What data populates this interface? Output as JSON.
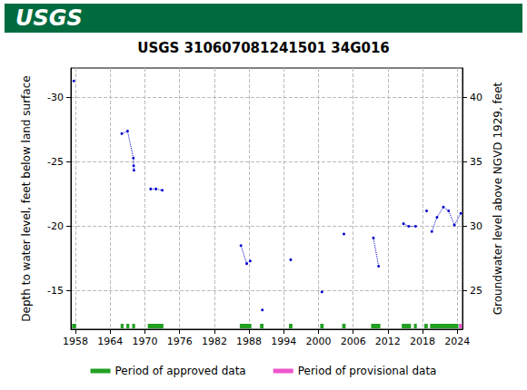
{
  "header": {
    "text": "USGS"
  },
  "chart_data": {
    "type": "line",
    "title": "USGS 310607081241501 34G016",
    "y_label": "Depth to water level, feet below land surface",
    "y2_label": "Groundwater level above NGVD 1929, feet",
    "x": [
      1957.7,
      null,
      1966.0,
      1967.0,
      1968.0,
      1968.05,
      1968.1,
      null,
      1971.0,
      1971.9,
      1973.0,
      null,
      1986.6,
      1987.6,
      1988.2,
      null,
      1990.3,
      null,
      1995.2,
      null,
      2000.6,
      null,
      2004.4,
      null,
      2009.5,
      2010.4,
      null,
      2014.7,
      2015.6,
      2016.8,
      null,
      2018.7,
      null,
      2019.6,
      2020.5,
      2021.6,
      2022.5,
      2023.5,
      2024.6
    ],
    "series": [
      {
        "color": "#0000cc",
        "marker": "circle",
        "line_style": "dotted",
        "values": [
          -31.3,
          null,
          -27.2,
          -27.4,
          -25.3,
          -24.7,
          -24.35,
          null,
          -22.9,
          -22.9,
          -22.8,
          null,
          -18.5,
          -17.1,
          -17.3,
          null,
          -13.5,
          null,
          -17.4,
          null,
          -14.9,
          null,
          -19.4,
          null,
          -19.1,
          -16.9,
          null,
          -20.2,
          -20.0,
          -20.0,
          null,
          -21.2,
          null,
          -19.6,
          -20.7,
          -21.5,
          -21.2,
          -20.1,
          -21.0
        ]
      }
    ],
    "periods": [
      {
        "name": "Period of approved data",
        "color": "#22a022",
        "ranges": [
          [
            1957.4,
            1958.1
          ],
          [
            1965.8,
            1966.3
          ],
          [
            1966.8,
            1967.3
          ],
          [
            1967.8,
            1968.3
          ],
          [
            1970.5,
            1973.2
          ],
          [
            1986.4,
            1988.4
          ],
          [
            1989.9,
            1990.5
          ],
          [
            1994.9,
            1995.5
          ],
          [
            2000.3,
            2000.9
          ],
          [
            2004.1,
            2004.7
          ],
          [
            2009.1,
            2010.7
          ],
          [
            2014.4,
            2016.0
          ],
          [
            2016.5,
            2017.0
          ],
          [
            2018.3,
            2018.9
          ],
          [
            2019.3,
            2024.2
          ]
        ]
      },
      {
        "name": "Period of provisional data",
        "color": "#ee55cc",
        "ranges": [
          [
            2024.3,
            2024.8
          ]
        ]
      }
    ],
    "xlim": [
      1957.2,
      2024.9
    ],
    "xticks": [
      1958,
      1964,
      1970,
      1976,
      1982,
      1988,
      1994,
      2000,
      2006,
      2012,
      2018,
      2024
    ],
    "ylim": [
      -12,
      -32.3
    ],
    "yticks": [
      -30,
      -25,
      -20,
      -15
    ],
    "y2lim": [
      22,
      42.3
    ],
    "y2ticks": [
      25,
      30,
      35,
      40
    ],
    "grid": true,
    "legend": "bottom"
  }
}
